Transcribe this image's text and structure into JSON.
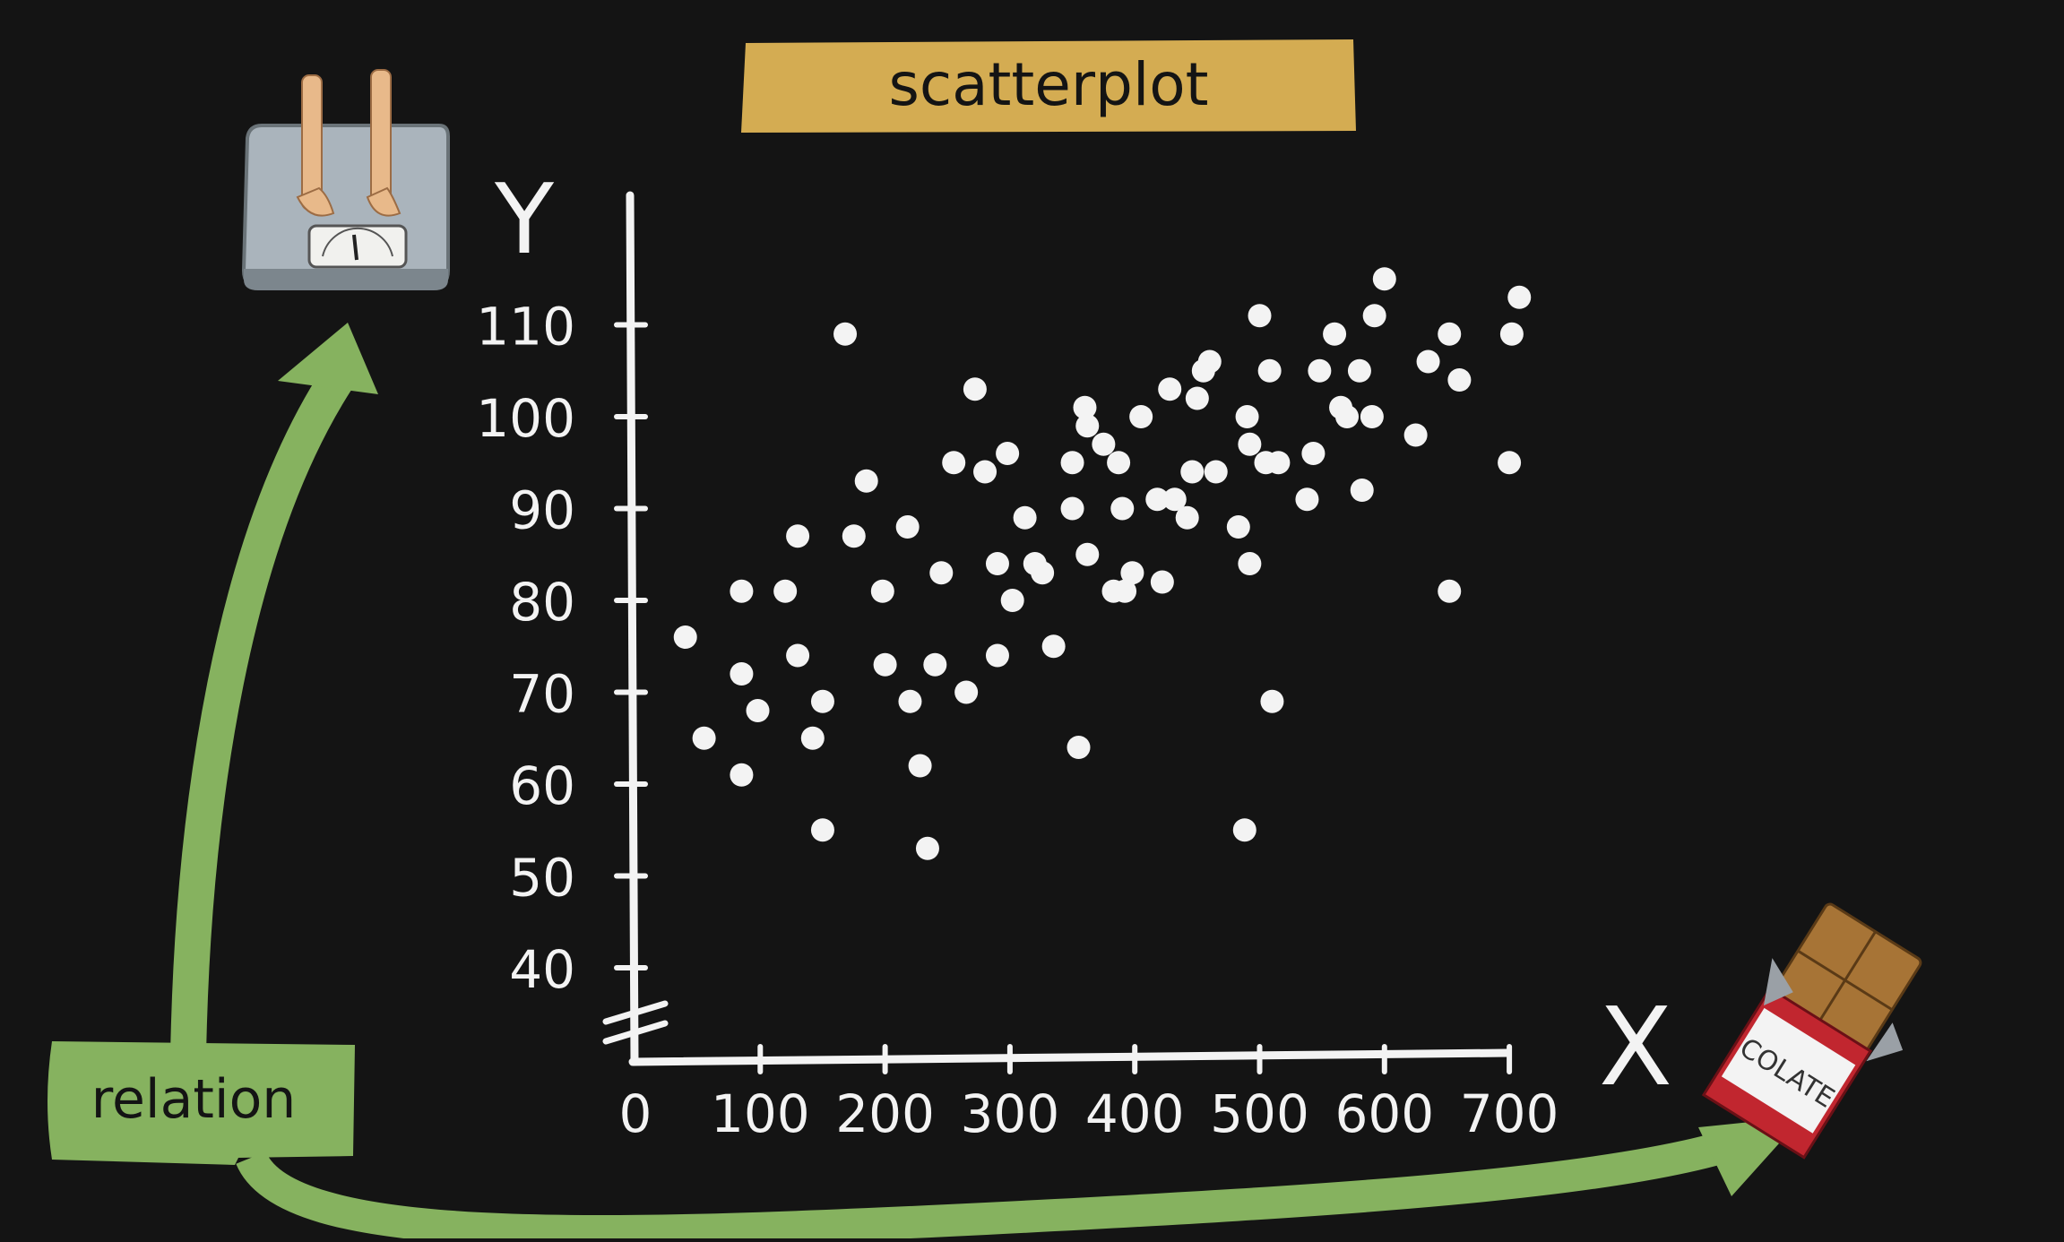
{
  "colors": {
    "background": "#141414",
    "title_banner": "#d4ac52",
    "arrow_green": "#86b25f",
    "chalk": "#f3f3f3"
  },
  "icons": {
    "top_left": "bathroom-scale-with-feet-icon",
    "bottom_right": "chocolate-bar-icon"
  },
  "labels": {
    "relation": "relation",
    "chocolate_wrapper": "COLATE"
  },
  "chart_data": {
    "type": "scatter",
    "title": "scatterplot",
    "xlabel": "X",
    "ylabel": "Y",
    "xlim": [
      0,
      700
    ],
    "ylim": [
      40,
      115
    ],
    "x_ticks": [
      0,
      100,
      200,
      300,
      400,
      500,
      600,
      700
    ],
    "y_ticks": [
      40,
      50,
      60,
      70,
      80,
      90,
      100,
      110
    ],
    "y_axis_break": true,
    "grid": false,
    "legend": "none",
    "points": [
      [
        40,
        76
      ],
      [
        55,
        65
      ],
      [
        85,
        81
      ],
      [
        85,
        72
      ],
      [
        85,
        61
      ],
      [
        98,
        68
      ],
      [
        120,
        81
      ],
      [
        130,
        87
      ],
      [
        130,
        74
      ],
      [
        142,
        65
      ],
      [
        150,
        69
      ],
      [
        150,
        55
      ],
      [
        168,
        109
      ],
      [
        175,
        87
      ],
      [
        185,
        93
      ],
      [
        198,
        81
      ],
      [
        200,
        73
      ],
      [
        218,
        88
      ],
      [
        220,
        69
      ],
      [
        228,
        62
      ],
      [
        234,
        53
      ],
      [
        240,
        73
      ],
      [
        245,
        83
      ],
      [
        255,
        95
      ],
      [
        265,
        70
      ],
      [
        272,
        103
      ],
      [
        280,
        94
      ],
      [
        290,
        84
      ],
      [
        290,
        74
      ],
      [
        298,
        96
      ],
      [
        302,
        80
      ],
      [
        312,
        89
      ],
      [
        320,
        84
      ],
      [
        326,
        83
      ],
      [
        335,
        75
      ],
      [
        350,
        95
      ],
      [
        350,
        90
      ],
      [
        355,
        64
      ],
      [
        360,
        101
      ],
      [
        362,
        99
      ],
      [
        362,
        85
      ],
      [
        375,
        97
      ],
      [
        383,
        81
      ],
      [
        387,
        95
      ],
      [
        390,
        90
      ],
      [
        392,
        81
      ],
      [
        398,
        83
      ],
      [
        405,
        100
      ],
      [
        418,
        91
      ],
      [
        422,
        82
      ],
      [
        428,
        103
      ],
      [
        432,
        91
      ],
      [
        442,
        89
      ],
      [
        446,
        94
      ],
      [
        450,
        102
      ],
      [
        455,
        105
      ],
      [
        460,
        106
      ],
      [
        465,
        94
      ],
      [
        483,
        88
      ],
      [
        488,
        55
      ],
      [
        490,
        100
      ],
      [
        492,
        84
      ],
      [
        492,
        97
      ],
      [
        500,
        111
      ],
      [
        505,
        95
      ],
      [
        508,
        105
      ],
      [
        510,
        69
      ],
      [
        515,
        95
      ],
      [
        538,
        91
      ],
      [
        543,
        96
      ],
      [
        548,
        105
      ],
      [
        560,
        109
      ],
      [
        565,
        101
      ],
      [
        570,
        100
      ],
      [
        580,
        105
      ],
      [
        582,
        92
      ],
      [
        590,
        100
      ],
      [
        592,
        111
      ],
      [
        600,
        115
      ],
      [
        625,
        98
      ],
      [
        635,
        106
      ],
      [
        652,
        109
      ],
      [
        652,
        81
      ],
      [
        660,
        104
      ],
      [
        700,
        95
      ],
      [
        702,
        109
      ],
      [
        708,
        113
      ]
    ]
  }
}
